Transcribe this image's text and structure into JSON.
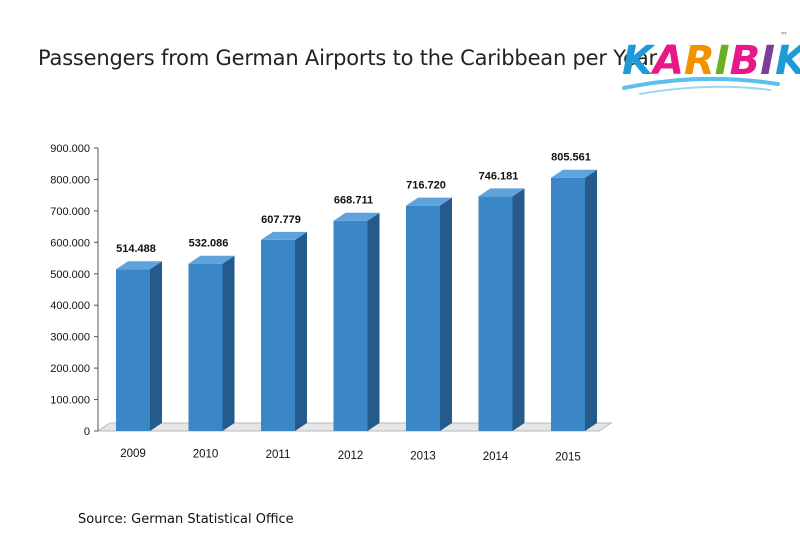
{
  "slide": {
    "title": "Passengers from German Airports to the Caribbean per Year",
    "source": "Source: German Statistical Office",
    "logo_text": "KARIBIK",
    "logo_mark": "™"
  },
  "chart_data": {
    "type": "bar",
    "style": "3d-column",
    "title": "Passengers from German Airports to the Caribbean per Year",
    "xlabel": "",
    "ylabel": "",
    "categories": [
      "2009",
      "2010",
      "2011",
      "2012",
      "2013",
      "2014",
      "2015"
    ],
    "values": [
      514488,
      532086,
      607779,
      668711,
      716720,
      746181,
      805561
    ],
    "data_labels": [
      "514.488",
      "532.086",
      "607.779",
      "668.711",
      "716.720",
      "746.181",
      "805.561"
    ],
    "ylim": [
      0,
      900000
    ],
    "yticks": [
      0,
      100000,
      200000,
      300000,
      400000,
      500000,
      600000,
      700000,
      800000,
      900000
    ],
    "ytick_labels": [
      "0",
      "100.000",
      "200.000",
      "300.000",
      "400.000",
      "500.000",
      "600.000",
      "700.000",
      "800.000",
      "900.000"
    ],
    "grid": false,
    "legend": "none",
    "colors": {
      "bar_front": "#3b86c6",
      "bar_side": "#255a8c",
      "bar_top": "#5fa3dc",
      "axis": "#555555",
      "floor": "#e6e6e6"
    }
  }
}
